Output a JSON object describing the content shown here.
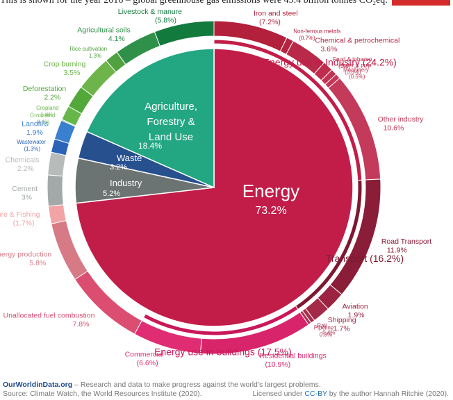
{
  "caption": "This is shown for the year 2016 – global greenhouse gas emissions were 49.4 billion tonnes CO₂eq.",
  "colors": {
    "energy": "#c21d48",
    "afolu": "#23a782",
    "waste": "#27508e",
    "industry": "#6b7472",
    "badge": "#d42b2b"
  },
  "chart_data": {
    "type": "pie",
    "total_note": "49.4 billion tonnes CO₂eq",
    "sectors": [
      {
        "name": "Energy",
        "value": 73.2,
        "label": "73.2%"
      },
      {
        "name": "Industry",
        "value": 5.2,
        "label": "5.2%"
      },
      {
        "name": "Waste",
        "value": 3.2,
        "label": "3.2%"
      },
      {
        "name": "Agriculture, Forestry & Land Use",
        "value": 18.4,
        "label": "18.4%"
      }
    ],
    "energy_groups": [
      {
        "name": "Energy use in Industry",
        "value": 24.2,
        "label": "(24.2%)"
      },
      {
        "name": "Transport",
        "value": 16.2,
        "label": "(16.2%)"
      },
      {
        "name": "Energy use in buildings",
        "value": 17.5,
        "label": "(17.5%)"
      }
    ],
    "subsectors": [
      {
        "name": "Iron and steel",
        "value": 7.2,
        "label": "(7.2%)"
      },
      {
        "name": "Non-ferrous metals",
        "value": 0.7,
        "label": "(0.7%)"
      },
      {
        "name": "Chemical & petrochemical",
        "value": 3.6,
        "label": "3.6%"
      },
      {
        "name": "Food & tobacco",
        "value": 1.0,
        "label": "(1%)"
      },
      {
        "name": "Paper & pulp",
        "value": 0.6,
        "label": "(0.6%)"
      },
      {
        "name": "Machinery",
        "value": 0.5,
        "label": "(0.5%)"
      },
      {
        "name": "Other industry",
        "value": 10.6,
        "label": "10.6%"
      },
      {
        "name": "Road Transport",
        "value": 11.9,
        "label": "11.9%"
      },
      {
        "name": "Aviation",
        "value": 1.9,
        "label": "1.9%"
      },
      {
        "name": "Shipping",
        "value": 1.7,
        "label": "1.7%"
      },
      {
        "name": "Rail",
        "value": 0.4,
        "label": "0.4%"
      },
      {
        "name": "Pipeline",
        "value": 0.3,
        "label": "0.3%"
      },
      {
        "name": "Residential buildings",
        "value": 10.9,
        "label": "(10.9%)"
      },
      {
        "name": "Commercial",
        "value": 6.6,
        "label": "(6.6%)"
      },
      {
        "name": "Unallocated fuel combustion",
        "value": 7.8,
        "label": "7.8%"
      },
      {
        "name": "Fugitive emissions from energy production",
        "value": 5.8,
        "label": "5.8%"
      },
      {
        "name": "Energy in Agriculture & Fishing",
        "value": 1.7,
        "label": "(1.7%)"
      },
      {
        "name": "Cement",
        "value": 3.0,
        "label": "3%"
      },
      {
        "name": "Chemicals",
        "value": 2.2,
        "label": "2.2%"
      },
      {
        "name": "Wastewater",
        "value": 1.3,
        "label": "(1.3%)"
      },
      {
        "name": "Landfills",
        "value": 1.9,
        "label": "1.9%"
      },
      {
        "name": "Grassland",
        "value": 0.1,
        "label": "0.1%"
      },
      {
        "name": "Cropland",
        "value": 1.4,
        "label": "1.4%"
      },
      {
        "name": "Deforestation",
        "value": 2.2,
        "label": "2.2%"
      },
      {
        "name": "Crop burning",
        "value": 3.5,
        "label": "3.5%"
      },
      {
        "name": "Rice cultivation",
        "value": 1.3,
        "label": "1.3%"
      },
      {
        "name": "Agricultural soils",
        "value": 4.1,
        "label": "4.1%"
      },
      {
        "name": "Livestock & manure",
        "value": 5.8,
        "label": "(5.8%)"
      }
    ]
  },
  "footer": {
    "brand": "OurWorldinData.org",
    "tagline": " – Research and data to make progress against the world’s largest problems.",
    "source": "Source: Climate Watch, the World Resources Institute (2020).",
    "license_prefix": "Licensed under ",
    "license_link": "CC-BY",
    "license_suffix": " by the author Hannah Ritchie (2020)."
  }
}
